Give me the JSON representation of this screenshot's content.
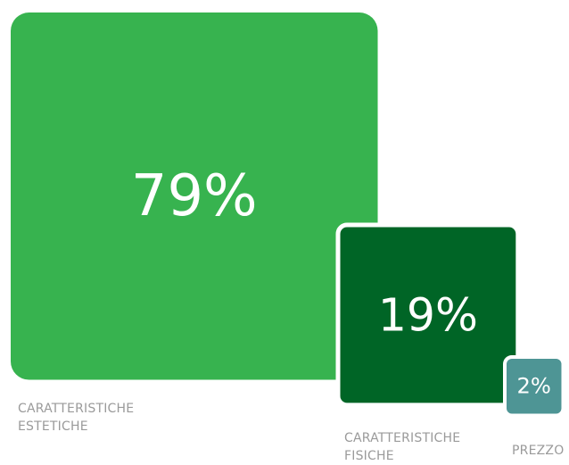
{
  "chart_data": {
    "type": "area",
    "categories": [
      "CARATTERISTICHE ESTETICHE",
      "CARATTERISTICHE FISICHE",
      "PREZZO"
    ],
    "values": [
      79,
      19,
      2
    ],
    "value_labels": [
      "79%",
      "19%",
      "2%"
    ],
    "colors": [
      "#37b34f",
      "#006526",
      "#4e9595"
    ]
  }
}
